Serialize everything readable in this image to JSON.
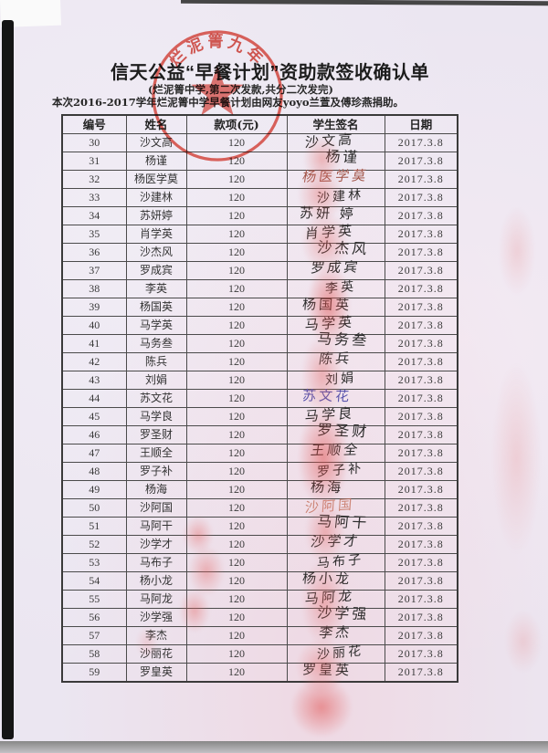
{
  "document": {
    "title": "信天公益“早餐计划”资助款签收确认单",
    "subtitle": "(烂泥箐中学,第二次发款,共分二次发完)",
    "intro": "本次2016-2017学年烂泥箐中学早餐计划由网友yoyo兰萱及傅珍燕捐助。"
  },
  "stamp": {
    "arc_text": "烂泥箐九年",
    "symbol": "five-pointed-star",
    "color": "#dd3427"
  },
  "table": {
    "headers": [
      "编号",
      "姓名",
      "款项(元)",
      "学生签名",
      "日期"
    ],
    "rows": [
      {
        "no": "30",
        "name": "沙文高",
        "amount": "120",
        "signature": "沙文高",
        "date": "2017.3.8"
      },
      {
        "no": "31",
        "name": "杨谨",
        "amount": "120",
        "signature": "杨谨",
        "date": "2017.3.8"
      },
      {
        "no": "32",
        "name": "杨医学莫",
        "amount": "120",
        "signature": "杨医学莫",
        "date": "2017.3.8",
        "ink": "#a2564a"
      },
      {
        "no": "33",
        "name": "沙建林",
        "amount": "120",
        "signature": "沙建林",
        "date": "2017.3.8"
      },
      {
        "no": "34",
        "name": "苏妍婷",
        "amount": "120",
        "signature": "苏妍 婷",
        "date": "2017.3.8"
      },
      {
        "no": "35",
        "name": "肖学英",
        "amount": "120",
        "signature": "肖学英",
        "date": "2017.3.8"
      },
      {
        "no": "36",
        "name": "沙杰风",
        "amount": "120",
        "signature": "沙杰风",
        "date": "2017.3.8"
      },
      {
        "no": "37",
        "name": "罗成宾",
        "amount": "120",
        "signature": "罗成宾",
        "date": "2017.3.8"
      },
      {
        "no": "38",
        "name": "李英",
        "amount": "120",
        "signature": "李英",
        "date": "2017.3.8"
      },
      {
        "no": "39",
        "name": "杨国英",
        "amount": "120",
        "signature": "杨国英",
        "date": "2017.3.8"
      },
      {
        "no": "40",
        "name": "马学英",
        "amount": "120",
        "signature": "马学英",
        "date": "2017.3.8"
      },
      {
        "no": "41",
        "name": "马务叁",
        "amount": "120",
        "signature": "马务叁",
        "date": "2017.3.8"
      },
      {
        "no": "42",
        "name": "陈兵",
        "amount": "120",
        "signature": "陈兵",
        "date": "2017.3.8"
      },
      {
        "no": "43",
        "name": "刘娟",
        "amount": "120",
        "signature": "刘娟",
        "date": "2017.3.8"
      },
      {
        "no": "44",
        "name": "苏文花",
        "amount": "120",
        "signature": "苏文花",
        "date": "2017.3.8",
        "ink": "#5a55ad"
      },
      {
        "no": "45",
        "name": "马学良",
        "amount": "120",
        "signature": "马学良",
        "date": "2017.3.8"
      },
      {
        "no": "46",
        "name": "罗圣财",
        "amount": "120",
        "signature": "罗圣财",
        "date": "2017.3.8"
      },
      {
        "no": "47",
        "name": "王顺全",
        "amount": "120",
        "signature": "王顺全",
        "date": "2017.3.8"
      },
      {
        "no": "48",
        "name": "罗子补",
        "amount": "120",
        "signature": "罗子补",
        "date": "2017.3.8"
      },
      {
        "no": "49",
        "name": "杨海",
        "amount": "120",
        "signature": "杨海",
        "date": "2017.3.8"
      },
      {
        "no": "50",
        "name": "沙阿国",
        "amount": "120",
        "signature": "沙阿国",
        "date": "2017.3.8",
        "ink": "rgba(193,104,82,0.75)"
      },
      {
        "no": "51",
        "name": "马阿干",
        "amount": "120",
        "signature": "马阿干",
        "date": "2017.3.8"
      },
      {
        "no": "52",
        "name": "沙学才",
        "amount": "120",
        "signature": "沙学才",
        "date": "2017.3.8"
      },
      {
        "no": "53",
        "name": "马布子",
        "amount": "120",
        "signature": "马布子",
        "date": "2017.3.8"
      },
      {
        "no": "54",
        "name": "杨小龙",
        "amount": "120",
        "signature": "杨小龙",
        "date": "2017.3.8"
      },
      {
        "no": "55",
        "name": "马阿龙",
        "amount": "120",
        "signature": "马阿龙",
        "date": "2017.3.8"
      },
      {
        "no": "56",
        "name": "沙学强",
        "amount": "120",
        "signature": "沙学强",
        "date": "2017.3.8"
      },
      {
        "no": "57",
        "name": "李杰",
        "amount": "120",
        "signature": "李杰",
        "date": "2017.3.8"
      },
      {
        "no": "58",
        "name": "沙丽花",
        "amount": "120",
        "signature": "沙丽花",
        "date": "2017.3.8"
      },
      {
        "no": "59",
        "name": "罗皇英",
        "amount": "120",
        "signature": "罗皇英",
        "date": "2017.3.8"
      }
    ]
  },
  "colors": {
    "stamp_red": "#dd3427",
    "paper": "#ebe6f1",
    "ink": "#2d2d2d",
    "table_border": "#4b4b4b",
    "smudge_pink": "#e4605e"
  }
}
